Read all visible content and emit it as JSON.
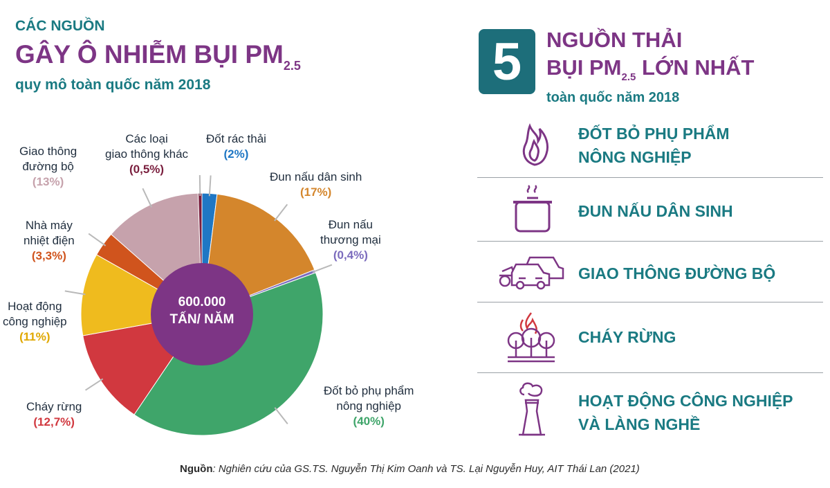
{
  "left_header": {
    "kicker": "CÁC NGUỒN",
    "title": "GÂY Ô NHIỄM BỤI PM",
    "title_sub": "2.5",
    "subtitle": "quy mô toàn quốc năm 2018"
  },
  "right_header": {
    "number": "5",
    "line1": "NGUỒN THẢI",
    "line2_a": "BỤI PM",
    "line2_sub": "2.5",
    "line2_b": " LỚN NHẤT",
    "subtitle": "toàn quốc năm 2018"
  },
  "top_sources": [
    {
      "icon": "flame-icon",
      "line1": "ĐỐT BỎ PHỤ PHẨM",
      "line2": "NÔNG NGHIỆP"
    },
    {
      "icon": "cooking-pot-icon",
      "line1": "ĐUN NẤU DÂN SINH",
      "line2": ""
    },
    {
      "icon": "vehicles-icon",
      "line1": "GIAO THÔNG ĐƯỜNG BỘ",
      "line2": ""
    },
    {
      "icon": "forest-fire-icon",
      "line1": "CHÁY RỪNG",
      "line2": ""
    },
    {
      "icon": "factory-chimney-icon",
      "line1": "HOẠT ĐỘNG CÔNG NGHIỆP",
      "line2": "VÀ LÀNG NGHỀ"
    }
  ],
  "chart_data": {
    "type": "pie",
    "style": "donut",
    "center_label": [
      "600.000",
      "TẤN/ NĂM"
    ],
    "center_color": "#7d3585",
    "slices": [
      {
        "label": "Đốt rác thải",
        "value": 2,
        "pct_label": "(2%)",
        "color": "#1f77c4"
      },
      {
        "label": "Đun nấu dân sinh",
        "value": 17,
        "pct_label": "(17%)",
        "color": "#d4862c"
      },
      {
        "label": "Đun nấu thương mại",
        "value": 0.4,
        "pct_label": "(0,4%)",
        "color": "#7b6bbd"
      },
      {
        "label": "Đốt bỏ phụ phẩm nông nghiệp",
        "value": 40,
        "pct_label": "(40%)",
        "color": "#3fa56a"
      },
      {
        "label": "Cháy rừng",
        "value": 12.7,
        "pct_label": "(12,7%)",
        "color": "#d1383f"
      },
      {
        "label": "Hoạt động công nghiệp",
        "value": 11,
        "pct_label": "(11%)",
        "color": "#efbb1e"
      },
      {
        "label": "Nhà máy nhiệt điện",
        "value": 3.3,
        "pct_label": "(3,3%)",
        "color": "#d0541d"
      },
      {
        "label": "Giao thông đường bộ",
        "value": 13,
        "pct_label": "(13%)",
        "color": "#c6a2ac"
      },
      {
        "label": "Các loại giao thông khác",
        "value": 0.5,
        "pct_label": "(0,5%)",
        "color": "#7a1f3e"
      }
    ],
    "slice_labels": [
      {
        "lines": [
          "Đốt rác thải"
        ],
        "pct": "(2%)"
      },
      {
        "lines": [
          "Đun nấu dân sinh"
        ],
        "pct": "(17%)"
      },
      {
        "lines": [
          "Đun nấu",
          "thương mại"
        ],
        "pct": "(0,4%)"
      },
      {
        "lines": [
          "Đốt bỏ phụ phẩm",
          "nông nghiệp"
        ],
        "pct": "(40%)"
      },
      {
        "lines": [
          "Cháy rừng"
        ],
        "pct": "(12,7%)"
      },
      {
        "lines": [
          "Hoạt động",
          "công nghiệp"
        ],
        "pct": "(11%)"
      },
      {
        "lines": [
          "Nhà máy",
          "nhiệt điện"
        ],
        "pct": "(3,3%)"
      },
      {
        "lines": [
          "Giao thông",
          "đường bộ"
        ],
        "pct": "(13%)"
      },
      {
        "lines": [
          "Các loại",
          "giao thông khác"
        ],
        "pct": "(0,5%)"
      }
    ]
  },
  "footer": {
    "source_label": "Nguồn",
    "source_text": ": Nghiên cứu của GS.TS. Nguyễn Thị Kim Oanh và TS. Lại Nguyễn Huy, AIT Thái Lan (2021)"
  }
}
